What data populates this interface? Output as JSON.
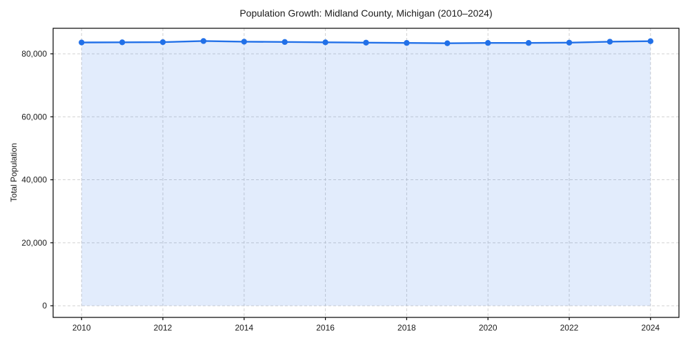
{
  "title": "Population Growth: Midland County, Michigan (2010–2024)",
  "chart_data": {
    "type": "area",
    "title": "Population Growth: Midland County, Michigan (2010–2024)",
    "xlabel": "",
    "ylabel": "Total Population",
    "x": [
      2010,
      2011,
      2012,
      2013,
      2014,
      2015,
      2016,
      2017,
      2018,
      2019,
      2020,
      2021,
      2022,
      2023,
      2024
    ],
    "values": [
      83600,
      83650,
      83700,
      84050,
      83850,
      83750,
      83650,
      83550,
      83450,
      83350,
      83450,
      83450,
      83550,
      83850,
      84000
    ],
    "series_name": "Total Population",
    "xlim": [
      2009.3,
      2024.7
    ],
    "ylim": [
      -3700,
      88100
    ],
    "x_ticks": [
      2010,
      2012,
      2014,
      2016,
      2018,
      2020,
      2022,
      2024
    ],
    "x_tick_labels": [
      "2010",
      "2012",
      "2014",
      "2016",
      "2018",
      "2020",
      "2022",
      "2024"
    ],
    "y_ticks": [
      0,
      20000,
      40000,
      60000,
      80000
    ],
    "y_tick_labels": [
      "0",
      "20,000",
      "40,000",
      "60,000",
      "80,000"
    ],
    "grid": true,
    "legend": "none",
    "baseline": 0,
    "colors": {
      "line": "#2170e8",
      "marker": "#2170e8",
      "fill": "#2170e8",
      "fill_opacity": 0.13,
      "grid": "#cccccc",
      "spine": "#000000",
      "text": "#1a1a1a",
      "background": "#ffffff"
    }
  }
}
